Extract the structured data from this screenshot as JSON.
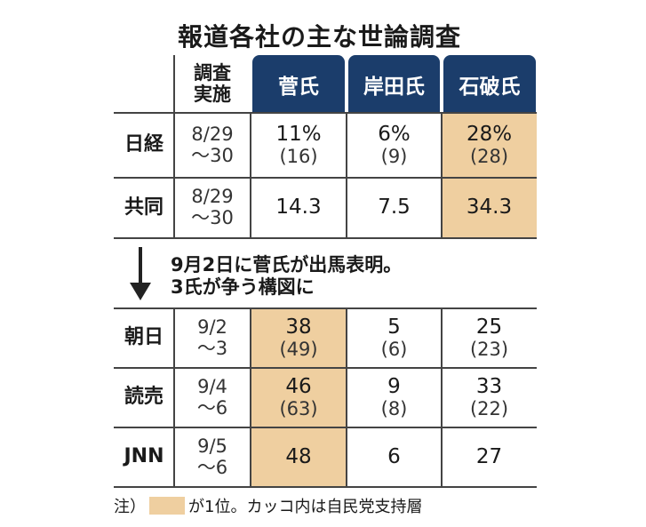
{
  "title": "報道各社の主な世論調査",
  "header": {
    "date_label_1": "調査",
    "date_label_2": "実施",
    "candidates": [
      "菅氏",
      "岸田氏",
      "石破氏"
    ]
  },
  "rows_before": [
    {
      "outlet": "日経",
      "date1": "8/29",
      "date2": "～30",
      "values": [
        {
          "v": "11%",
          "p": "(16)"
        },
        {
          "v": "6%",
          "p": "(9)"
        },
        {
          "v": "28%",
          "p": "(28)"
        }
      ],
      "top": 2
    },
    {
      "outlet": "共同",
      "date1": "8/29",
      "date2": "～30",
      "values": [
        {
          "v": "14.3"
        },
        {
          "v": "7.5"
        },
        {
          "v": "34.3"
        }
      ],
      "top": 2
    }
  ],
  "note": {
    "line1": "9月2日に菅氏が出馬表明。",
    "line2": "3氏が争う構図に"
  },
  "rows_after": [
    {
      "outlet": "朝日",
      "date1": "9/2",
      "date2": "～3",
      "values": [
        {
          "v": "38",
          "p": "(49)"
        },
        {
          "v": "5",
          "p": "(6)"
        },
        {
          "v": "25",
          "p": "(23)"
        }
      ],
      "top": 0
    },
    {
      "outlet": "読売",
      "date1": "9/4",
      "date2": "～6",
      "values": [
        {
          "v": "46",
          "p": "(63)"
        },
        {
          "v": "9",
          "p": "(8)"
        },
        {
          "v": "33",
          "p": "(22)"
        }
      ],
      "top": 0
    },
    {
      "outlet": "JNN",
      "date1": "9/5",
      "date2": "～6",
      "values": [
        {
          "v": "48"
        },
        {
          "v": "6"
        },
        {
          "v": "27"
        }
      ],
      "top": 0
    }
  ],
  "footnote": {
    "prefix": "注）",
    "text": "が1位。カッコ内は自民党支持層"
  },
  "colors": {
    "header": "#1b3d6b",
    "highlight": "#efcfa0"
  }
}
